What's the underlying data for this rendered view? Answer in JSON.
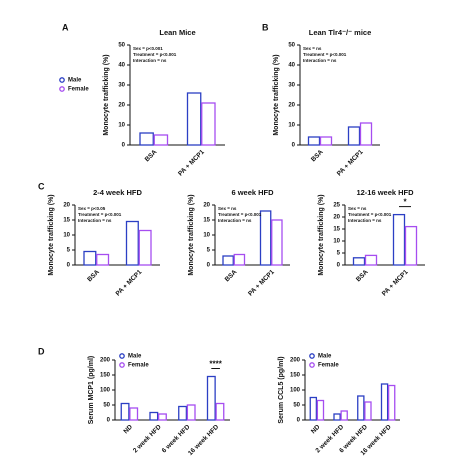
{
  "chart_data": [
    {
      "panel": "A",
      "type": "bar",
      "title": "Lean Mice",
      "ylabel": "Monocyte trafficking (%)",
      "categories": [
        "BSA",
        "PA + MCP1"
      ],
      "series": [
        {
          "name": "Male",
          "color": "#2b3fc4",
          "values": [
            6,
            26
          ]
        },
        {
          "name": "Female",
          "color": "#a64df0",
          "values": [
            5,
            21
          ]
        }
      ],
      "ylim": [
        0,
        50
      ],
      "yticks": [
        0,
        10,
        20,
        30,
        40,
        50
      ],
      "legend": "left",
      "annotation": [
        "Sex = p<0.001",
        "Treatment = p<0.001",
        "Interaction = ns"
      ]
    },
    {
      "panel": "B",
      "type": "bar",
      "title": "Lean Tlr4⁻/⁻ mice",
      "ylabel": "Monocyte trafficking (%)",
      "categories": [
        "BSA",
        "PA + MCP1"
      ],
      "series": [
        {
          "name": "Male",
          "color": "#2b3fc4",
          "values": [
            4,
            9
          ]
        },
        {
          "name": "Female",
          "color": "#a64df0",
          "values": [
            4,
            11
          ]
        }
      ],
      "ylim": [
        0,
        50
      ],
      "yticks": [
        0,
        10,
        20,
        30,
        40,
        50
      ],
      "annotation": [
        "Sex = ns",
        "Treatment = p<0.001",
        "Interaction = ns"
      ]
    },
    {
      "panel": "C",
      "type": "bar",
      "title": "2-4 week HFD",
      "ylabel": "Monocyte trafficking (%)",
      "categories": [
        "BSA",
        "PA + MCP1"
      ],
      "series": [
        {
          "name": "Male",
          "color": "#2b3fc4",
          "values": [
            4.5,
            14.5
          ]
        },
        {
          "name": "Female",
          "color": "#a64df0",
          "values": [
            3.5,
            11.5
          ]
        }
      ],
      "ylim": [
        0,
        20
      ],
      "yticks": [
        0,
        5,
        10,
        15,
        20
      ],
      "annotation": [
        "Sex = p<0.05",
        "Treatment = p<0.001",
        "Interaction = ns"
      ]
    },
    {
      "type": "bar",
      "title": "6 week HFD",
      "ylabel": "Monocyte trafficking (%)",
      "categories": [
        "BSA",
        "PA + MCP1"
      ],
      "series": [
        {
          "name": "Male",
          "color": "#2b3fc4",
          "values": [
            3,
            18
          ]
        },
        {
          "name": "Female",
          "color": "#a64df0",
          "values": [
            3.5,
            15
          ]
        }
      ],
      "ylim": [
        0,
        20
      ],
      "yticks": [
        0,
        5,
        10,
        15,
        20
      ],
      "annotation": [
        "Sex = ns",
        "Treatment = p<0.001",
        "Interaction = ns"
      ]
    },
    {
      "type": "bar",
      "title": "12-16 week HFD",
      "ylabel": "Monocyte trafficking (%)",
      "categories": [
        "BSA",
        "PA + MCP1"
      ],
      "series": [
        {
          "name": "Male",
          "color": "#2b3fc4",
          "values": [
            3,
            21
          ]
        },
        {
          "name": "Female",
          "color": "#a64df0",
          "values": [
            4,
            16
          ]
        }
      ],
      "ylim": [
        0,
        25
      ],
      "yticks": [
        0,
        5,
        10,
        15,
        20,
        25
      ],
      "significance": "*",
      "annotation": [
        "Sex = ns",
        "Treatment = p<0.001",
        "Interaction = ns"
      ]
    },
    {
      "panel": "D",
      "type": "bar",
      "ylabel": "Serum MCP1 (pg/ml)",
      "categories": [
        "ND",
        "2 week HFD",
        "6 week HFD",
        "16 week HFD"
      ],
      "series": [
        {
          "name": "Male",
          "color": "#2b3fc4",
          "values": [
            55,
            25,
            45,
            145
          ]
        },
        {
          "name": "Female",
          "color": "#a64df0",
          "values": [
            40,
            20,
            50,
            55
          ]
        }
      ],
      "ylim": [
        0,
        200
      ],
      "yticks": [
        0,
        50,
        100,
        150,
        200
      ],
      "legend": "top-left",
      "significance": "****"
    },
    {
      "type": "bar",
      "ylabel": "Serum CCL5 (pg/ml)",
      "categories": [
        "ND",
        "2 week HFD",
        "6 week HFD",
        "16 week HFD"
      ],
      "series": [
        {
          "name": "Male",
          "color": "#2b3fc4",
          "values": [
            75,
            20,
            80,
            120
          ]
        },
        {
          "name": "Female",
          "color": "#a64df0",
          "values": [
            65,
            30,
            60,
            115
          ]
        }
      ],
      "ylim": [
        0,
        200
      ],
      "yticks": [
        0,
        50,
        100,
        150,
        200
      ],
      "legend": "top-left"
    }
  ]
}
